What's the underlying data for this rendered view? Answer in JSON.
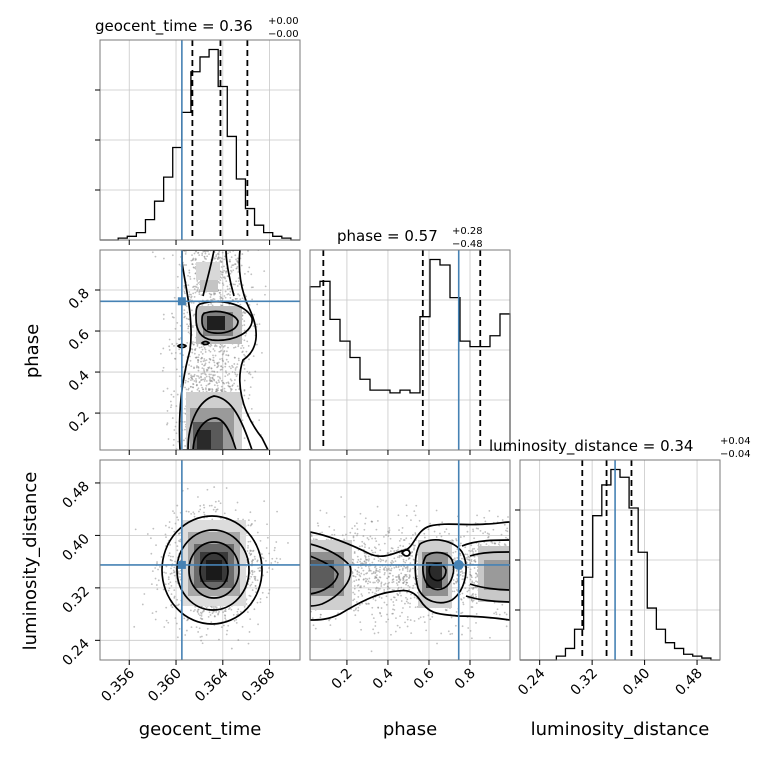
{
  "titles": {
    "geocent_time": {
      "name": "geocent_time",
      "median": "0.36",
      "plus": "+0.00",
      "minus": "−0.00"
    },
    "phase": {
      "name": "phase",
      "median": "0.57",
      "plus": "+0.28",
      "minus": "−0.48"
    },
    "luminosity_distance": {
      "name": "luminosity_distance",
      "median": "0.34",
      "plus": "+0.04",
      "minus": "−0.04"
    }
  },
  "axis_labels": {
    "geocent_time": "geocent_time",
    "phase": "phase",
    "luminosity_distance": "luminosity_distance"
  },
  "colors": {
    "truth": "#4682b4",
    "hist": "#000000",
    "grid": "#c8c8c8"
  },
  "chart_data": {
    "type": "corner",
    "parameters": [
      "geocent_time",
      "phase",
      "luminosity_distance"
    ],
    "ranges": {
      "geocent_time": [
        0.3535,
        0.3706
      ],
      "phase": [
        0.02,
        0.995
      ],
      "luminosity_distance": [
        0.21,
        0.515
      ]
    },
    "ticks": {
      "geocent_time": [
        "0.356",
        "0.360",
        "0.364",
        "0.368"
      ],
      "phase": [
        "0.2",
        "0.4",
        "0.6",
        "0.8"
      ],
      "luminosity_distance": [
        "0.24",
        "0.32",
        "0.40",
        "0.48"
      ]
    },
    "truths": {
      "geocent_time": 0.3605,
      "phase": 0.745,
      "luminosity_distance": 0.355
    },
    "quantiles": {
      "geocent_time": [
        0.3614,
        0.3638,
        0.3661
      ],
      "phase": [
        0.085,
        0.57,
        0.85
      ],
      "luminosity_distance": [
        0.305,
        0.342,
        0.38
      ]
    },
    "histograms": {
      "geocent_time": {
        "edges_range": [
          0.3535,
          0.3706
        ],
        "counts": [
          0,
          0,
          1,
          2,
          4,
          11,
          21,
          34,
          50,
          69,
          91,
          99,
          103,
          83,
          56,
          33,
          17,
          8,
          4,
          2,
          1,
          0
        ]
      },
      "phase": {
        "edges_range": [
          0.02,
          0.995
        ],
        "counts": [
          60,
          62,
          48,
          40,
          34,
          26,
          22,
          22,
          21,
          22,
          21,
          49,
          70,
          68,
          56,
          40,
          38,
          38,
          42,
          50
        ]
      },
      "luminosity_distance": {
        "edges_range": [
          0.21,
          0.515
        ],
        "counts": [
          0,
          0,
          0,
          0,
          2,
          6,
          16,
          43,
          75,
          91,
          99,
          95,
          79,
          56,
          27,
          16,
          9,
          6,
          3,
          2,
          1,
          0
        ]
      }
    },
    "contour_levels": [
      "0.5σ",
      "1σ",
      "1.5σ",
      "2σ"
    ]
  }
}
